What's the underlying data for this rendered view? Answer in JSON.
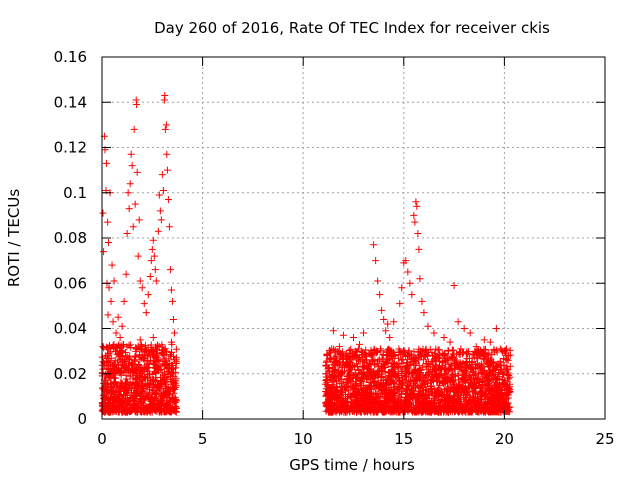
{
  "chart_data": {
    "type": "scatter",
    "title": "Day 260 of 2016, Rate Of TEC Index for receiver ckis",
    "xlabel": "GPS time / hours",
    "ylabel": "ROTI / TECUs",
    "xlim": [
      0,
      25
    ],
    "ylim": [
      0,
      0.16
    ],
    "xticks": [
      0,
      5,
      10,
      15,
      20,
      25
    ],
    "xtick_labels": [
      "0",
      "5",
      "10",
      "15",
      "20",
      "25"
    ],
    "yticks": [
      0,
      0.02,
      0.04,
      0.06,
      0.08,
      0.1,
      0.12,
      0.14,
      0.16
    ],
    "ytick_labels": [
      "0",
      "0.02",
      "0.04",
      "0.06",
      "0.08",
      "0.1",
      "0.12",
      "0.14",
      "0.16"
    ],
    "grid": true,
    "marker": "+",
    "color": "#ff0000",
    "series": [
      {
        "name": "ROTI",
        "points": [
          [
            0.05,
            0.091
          ],
          [
            0.08,
            0.074
          ],
          [
            0.12,
            0.125
          ],
          [
            0.15,
            0.119
          ],
          [
            0.2,
            0.101
          ],
          [
            0.22,
            0.113
          ],
          [
            0.25,
            0.06
          ],
          [
            0.28,
            0.087
          ],
          [
            0.3,
            0.046
          ],
          [
            0.32,
            0.078
          ],
          [
            0.35,
            0.058
          ],
          [
            0.4,
            0.1
          ],
          [
            0.45,
            0.052
          ],
          [
            0.5,
            0.068
          ],
          [
            0.55,
            0.043
          ],
          [
            0.6,
            0.061
          ],
          [
            0.7,
            0.038
          ],
          [
            0.8,
            0.045
          ],
          [
            0.9,
            0.036
          ],
          [
            1.0,
            0.041
          ],
          [
            1.1,
            0.052
          ],
          [
            1.2,
            0.064
          ],
          [
            1.25,
            0.082
          ],
          [
            1.3,
            0.1
          ],
          [
            1.35,
            0.093
          ],
          [
            1.4,
            0.104
          ],
          [
            1.45,
            0.117
          ],
          [
            1.5,
            0.112
          ],
          [
            1.55,
            0.085
          ],
          [
            1.6,
            0.128
          ],
          [
            1.65,
            0.095
          ],
          [
            1.7,
            0.141
          ],
          [
            1.72,
            0.139
          ],
          [
            1.75,
            0.109
          ],
          [
            1.8,
            0.072
          ],
          [
            1.85,
            0.088
          ],
          [
            1.9,
            0.061
          ],
          [
            2.0,
            0.058
          ],
          [
            2.1,
            0.051
          ],
          [
            2.2,
            0.047
          ],
          [
            2.3,
            0.055
          ],
          [
            2.4,
            0.063
          ],
          [
            2.45,
            0.07
          ],
          [
            2.5,
            0.075
          ],
          [
            2.55,
            0.079
          ],
          [
            2.6,
            0.072
          ],
          [
            2.65,
            0.066
          ],
          [
            2.7,
            0.061
          ],
          [
            2.8,
            0.083
          ],
          [
            2.85,
            0.099
          ],
          [
            2.9,
            0.092
          ],
          [
            2.95,
            0.088
          ],
          [
            3.0,
            0.108
          ],
          [
            3.05,
            0.101
          ],
          [
            3.1,
            0.141
          ],
          [
            3.12,
            0.143
          ],
          [
            3.15,
            0.128
          ],
          [
            3.2,
            0.13
          ],
          [
            3.22,
            0.117
          ],
          [
            3.25,
            0.11
          ],
          [
            3.3,
            0.097
          ],
          [
            3.35,
            0.085
          ],
          [
            3.4,
            0.066
          ],
          [
            3.45,
            0.057
          ],
          [
            3.5,
            0.052
          ],
          [
            3.55,
            0.044
          ],
          [
            3.6,
            0.038
          ],
          [
            0.6,
            0.031
          ],
          [
            1.05,
            0.033
          ],
          [
            1.9,
            0.035
          ],
          [
            2.55,
            0.036
          ],
          [
            3.45,
            0.034
          ],
          [
            13.5,
            0.077
          ],
          [
            13.6,
            0.07
          ],
          [
            13.7,
            0.061
          ],
          [
            13.8,
            0.055
          ],
          [
            13.9,
            0.048
          ],
          [
            14.0,
            0.044
          ],
          [
            14.1,
            0.039
          ],
          [
            14.2,
            0.042
          ],
          [
            14.5,
            0.043
          ],
          [
            14.8,
            0.051
          ],
          [
            14.9,
            0.058
          ],
          [
            15.0,
            0.069
          ],
          [
            15.1,
            0.07
          ],
          [
            15.2,
            0.065
          ],
          [
            15.3,
            0.06
          ],
          [
            15.4,
            0.055
          ],
          [
            15.5,
            0.09
          ],
          [
            15.55,
            0.087
          ],
          [
            15.6,
            0.096
          ],
          [
            15.65,
            0.094
          ],
          [
            15.7,
            0.082
          ],
          [
            15.75,
            0.075
          ],
          [
            15.8,
            0.062
          ],
          [
            15.9,
            0.052
          ],
          [
            16.0,
            0.047
          ],
          [
            16.2,
            0.041
          ],
          [
            16.5,
            0.038
          ],
          [
            17.0,
            0.036
          ],
          [
            17.5,
            0.059
          ],
          [
            17.7,
            0.043
          ],
          [
            18.0,
            0.04
          ],
          [
            18.3,
            0.038
          ],
          [
            18.6,
            0.032
          ],
          [
            19.0,
            0.035
          ],
          [
            19.3,
            0.034
          ],
          [
            19.6,
            0.04
          ],
          [
            19.8,
            0.031
          ],
          [
            20.0,
            0.03
          ],
          [
            20.2,
            0.028
          ],
          [
            11.5,
            0.039
          ],
          [
            12.0,
            0.037
          ],
          [
            12.5,
            0.036
          ],
          [
            13.0,
            0.038
          ],
          [
            12.8,
            0.033
          ],
          [
            11.8,
            0.032
          ],
          [
            14.3,
            0.036
          ],
          [
            17.3,
            0.034
          ],
          [
            18.9,
            0.029
          ]
        ]
      }
    ],
    "dense_bands": [
      {
        "x": [
          0.0,
          3.7
        ],
        "y": [
          0.003,
          0.033
        ]
      },
      {
        "x": [
          11.1,
          20.3
        ],
        "y": [
          0.003,
          0.031
        ]
      }
    ]
  }
}
